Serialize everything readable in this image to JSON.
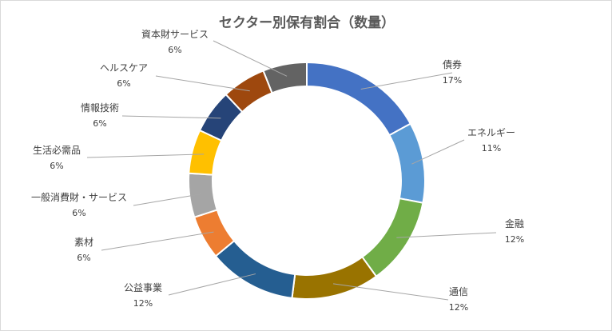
{
  "chart_data": {
    "type": "pie",
    "variant": "doughnut",
    "title": "セクター別保有割合（数量）",
    "legend": "none",
    "slices": [
      {
        "label": "債券",
        "value": 17,
        "display": "17%",
        "color": "#4472C4"
      },
      {
        "label": "エネルギー",
        "value": 11,
        "display": "11%",
        "color": "#5B9BD5"
      },
      {
        "label": "金融",
        "value": 12,
        "display": "12%",
        "color": "#70AD47"
      },
      {
        "label": "通信",
        "value": 12,
        "display": "12%",
        "color": "#997300"
      },
      {
        "label": "公益事業",
        "value": 12,
        "display": "12%",
        "color": "#255E91"
      },
      {
        "label": "素材",
        "value": 6,
        "display": "6%",
        "color": "#ED7D31"
      },
      {
        "label": "一般消費財・サービス",
        "value": 6,
        "display": "6%",
        "color": "#A5A5A5"
      },
      {
        "label": "生活必需品",
        "value": 6,
        "display": "6%",
        "color": "#FFC000"
      },
      {
        "label": "情報技術",
        "value": 6,
        "display": "6%",
        "color": "#264478"
      },
      {
        "label": "ヘルスケア",
        "value": 6,
        "display": "6%",
        "color": "#9E480E"
      },
      {
        "label": "資本財サービス",
        "value": 6,
        "display": "6%",
        "color": "#636363"
      }
    ]
  }
}
